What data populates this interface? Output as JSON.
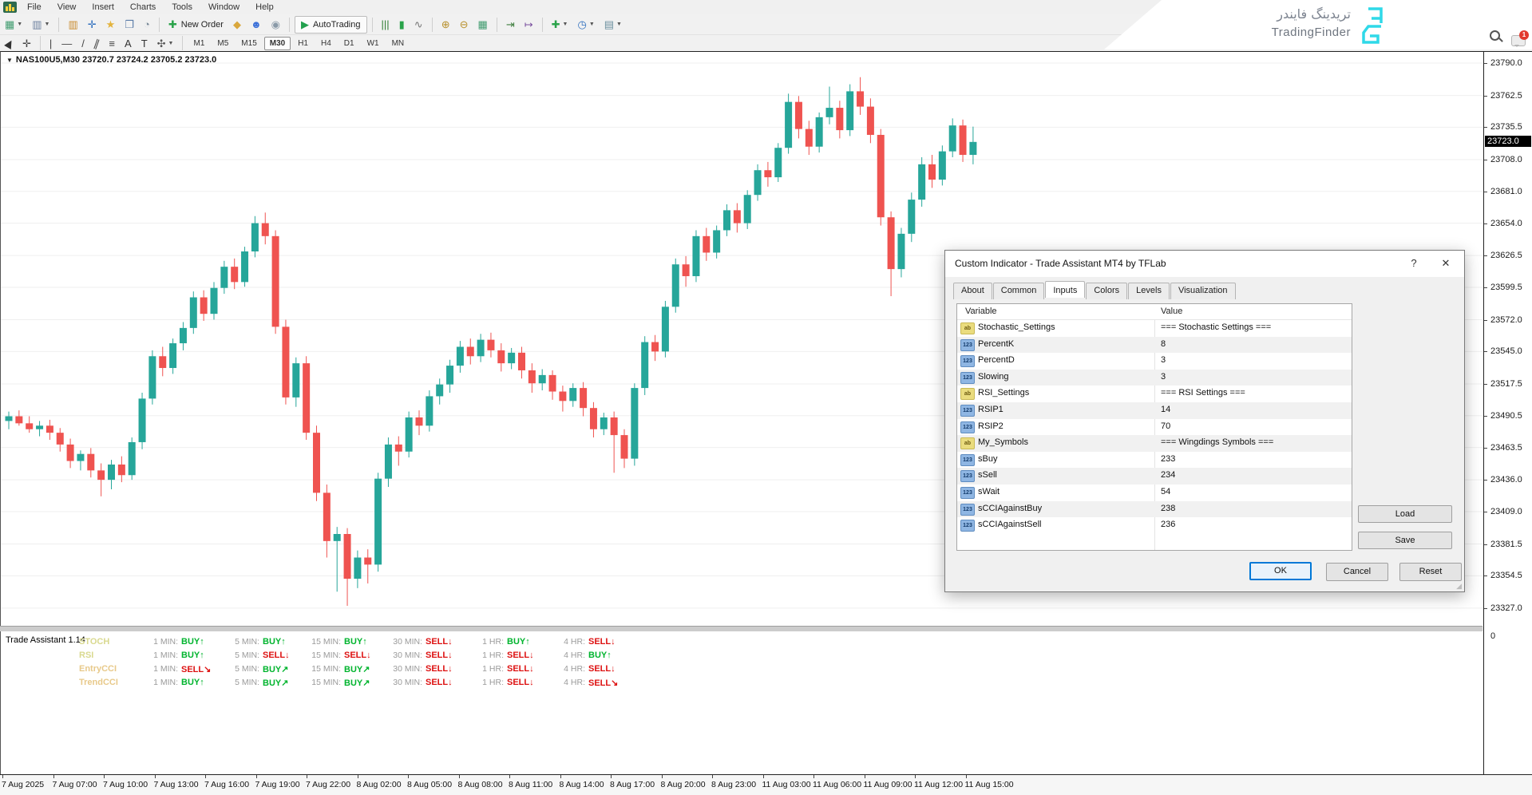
{
  "window": {
    "menus": [
      "File",
      "View",
      "Insert",
      "Charts",
      "Tools",
      "Window",
      "Help"
    ],
    "controls": {
      "minimize": "–",
      "restore": "▢",
      "close": "✕"
    }
  },
  "watermark": {
    "brand_fa": "تریدینگ فایندر",
    "brand_en": "TradingFinder",
    "notification_count": "1",
    "logo_color": "#2fd9e8"
  },
  "toolbar_main": {
    "items": [
      {
        "name": "new-chart",
        "glyph": "▦",
        "color": "#3f9b6e",
        "caret": true
      },
      {
        "name": "profiles",
        "glyph": "▥",
        "color": "#6b7f9e",
        "caret": true
      },
      {
        "sep": true
      },
      {
        "name": "market-watch",
        "glyph": "▥",
        "color": "#c98a2d"
      },
      {
        "name": "data-window",
        "glyph": "✛",
        "color": "#2f6fbe"
      },
      {
        "name": "navigator",
        "glyph": "★",
        "color": "#e3b33c"
      },
      {
        "name": "terminal",
        "glyph": "❒",
        "color": "#5a7ca8"
      },
      {
        "name": "strategy-tester",
        "glyph": "◔",
        "color": "#7a8a99"
      },
      {
        "sep": true
      },
      {
        "name": "new-order",
        "glyph": "✚",
        "color": "#2aa34a",
        "label": "New Order"
      },
      {
        "name": "metaeditor",
        "glyph": "◆",
        "color": "#d9a73c"
      },
      {
        "name": "experts",
        "glyph": "☻",
        "color": "#3a6fd8"
      },
      {
        "name": "optimizer",
        "glyph": "◉",
        "color": "#8a9aa8"
      },
      {
        "sep": true
      },
      {
        "name": "autotrading",
        "glyph": "▶",
        "color": "#23a04e",
        "label": "AutoTrading",
        "boxed": true
      },
      {
        "sep": true
      },
      {
        "name": "chart-bars",
        "glyph": "|||",
        "color": "#2e7d32"
      },
      {
        "name": "chart-candles",
        "glyph": "▮",
        "color": "#2aa34a"
      },
      {
        "name": "chart-line",
        "glyph": "∿",
        "color": "#777777"
      },
      {
        "sep": true
      },
      {
        "name": "zoom-in",
        "glyph": "⊕",
        "color": "#b8902c"
      },
      {
        "name": "zoom-out",
        "glyph": "⊖",
        "color": "#b8902c"
      },
      {
        "name": "tile-windows",
        "glyph": "▦",
        "color": "#3f9b6e"
      },
      {
        "sep": true
      },
      {
        "name": "auto-scroll",
        "glyph": "⇥",
        "color": "#3f7f3f"
      },
      {
        "name": "chart-shift",
        "glyph": "↦",
        "color": "#7a4f9e"
      },
      {
        "sep": true
      },
      {
        "name": "indicators",
        "glyph": "✚",
        "color": "#2aa34a",
        "caret": true
      },
      {
        "name": "periods",
        "glyph": "◷",
        "color": "#2f6fbe",
        "caret": true
      },
      {
        "name": "templates",
        "glyph": "▤",
        "color": "#6b8f9e",
        "caret": true
      }
    ]
  },
  "toolbar_drawing": {
    "items": [
      {
        "name": "cursor",
        "glyph": "▶",
        "color": "#333333",
        "rot": -60
      },
      {
        "name": "crosshair",
        "glyph": "✛",
        "color": "#444444"
      },
      {
        "sep": true
      },
      {
        "name": "vertical-line",
        "glyph": "|",
        "color": "#444444"
      },
      {
        "name": "horizontal-line",
        "glyph": "—",
        "color": "#444444"
      },
      {
        "name": "trendline",
        "glyph": "/",
        "color": "#444444"
      },
      {
        "name": "channel",
        "glyph": "∥",
        "color": "#444444",
        "rot": 20
      },
      {
        "name": "fibonacci",
        "glyph": "≡",
        "color": "#444444"
      },
      {
        "name": "text",
        "glyph": "A",
        "color": "#333333"
      },
      {
        "name": "text-label",
        "glyph": "T",
        "color": "#333333"
      },
      {
        "name": "arrows",
        "glyph": "✣",
        "color": "#555555",
        "caret": true
      },
      {
        "sep": true
      }
    ]
  },
  "timeframes": {
    "items": [
      "M1",
      "M5",
      "M15",
      "M30",
      "H1",
      "H4",
      "D1",
      "W1",
      "MN"
    ],
    "active": "M30"
  },
  "chart": {
    "symbol_line": "NAS100U5,M30  23720.7 23724.2 23705.2 23723.0",
    "current_price": "23723.0",
    "price_axis": [
      "23790.0",
      "23762.5",
      "23735.5",
      "23708.0",
      "23681.0",
      "23654.0",
      "23626.5",
      "23599.5",
      "23572.0",
      "23545.0",
      "23517.5",
      "23490.5",
      "23463.5",
      "23436.0",
      "23409.0",
      "23381.5",
      "23354.5",
      "23327.0"
    ],
    "sub_axis_zero": "0",
    "time_labels": [
      "7 Aug 2025",
      "7 Aug 07:00",
      "7 Aug 10:00",
      "7 Aug 13:00",
      "7 Aug 16:00",
      "7 Aug 19:00",
      "7 Aug 22:00",
      "8 Aug 02:00",
      "8 Aug 05:00",
      "8 Aug 08:00",
      "8 Aug 11:00",
      "8 Aug 14:00",
      "8 Aug 17:00",
      "8 Aug 20:00",
      "8 Aug 23:00",
      "11 Aug 03:00",
      "11 Aug 06:00",
      "11 Aug 09:00",
      "11 Aug 12:00",
      "11 Aug 15:00"
    ]
  },
  "chart_data": {
    "type": "candlestick",
    "symbol": "NAS100U5",
    "timeframe": "M30",
    "bull_color": "#26a69a",
    "bear_color": "#ef5350",
    "ylim": [
      23320,
      23800
    ],
    "current_price": 23723.0,
    "ohlc": [
      [
        23486,
        23494,
        23479,
        23490
      ],
      [
        23490,
        23495,
        23482,
        23484
      ],
      [
        23484,
        23490,
        23476,
        23479
      ],
      [
        23479,
        23486,
        23473,
        23482
      ],
      [
        23482,
        23487,
        23470,
        23476
      ],
      [
        23476,
        23480,
        23460,
        23466
      ],
      [
        23466,
        23471,
        23446,
        23452
      ],
      [
        23452,
        23461,
        23444,
        23458
      ],
      [
        23458,
        23463,
        23438,
        23444
      ],
      [
        23444,
        23450,
        23422,
        23436
      ],
      [
        23436,
        23453,
        23428,
        23449
      ],
      [
        23449,
        23456,
        23434,
        23440
      ],
      [
        23440,
        23472,
        23436,
        23468
      ],
      [
        23468,
        23510,
        23462,
        23505
      ],
      [
        23505,
        23546,
        23500,
        23541
      ],
      [
        23541,
        23549,
        23524,
        23531
      ],
      [
        23531,
        23556,
        23526,
        23552
      ],
      [
        23552,
        23570,
        23546,
        23565
      ],
      [
        23565,
        23596,
        23560,
        23591
      ],
      [
        23591,
        23597,
        23571,
        23577
      ],
      [
        23577,
        23604,
        23572,
        23599
      ],
      [
        23599,
        23622,
        23594,
        23617
      ],
      [
        23617,
        23624,
        23598,
        23604
      ],
      [
        23604,
        23634,
        23600,
        23630
      ],
      [
        23630,
        23660,
        23625,
        23654
      ],
      [
        23654,
        23663,
        23636,
        23643
      ],
      [
        23643,
        23648,
        23560,
        23566
      ],
      [
        23566,
        23572,
        23500,
        23506
      ],
      [
        23506,
        23540,
        23498,
        23535
      ],
      [
        23535,
        23541,
        23470,
        23476
      ],
      [
        23476,
        23482,
        23418,
        23425
      ],
      [
        23425,
        23432,
        23370,
        23384
      ],
      [
        23384,
        23396,
        23341,
        23390
      ],
      [
        23390,
        23395,
        23329,
        23352
      ],
      [
        23352,
        23376,
        23344,
        23370
      ],
      [
        23370,
        23377,
        23348,
        23364
      ],
      [
        23364,
        23442,
        23358,
        23437
      ],
      [
        23437,
        23472,
        23430,
        23466
      ],
      [
        23466,
        23473,
        23448,
        23460
      ],
      [
        23460,
        23494,
        23455,
        23489
      ],
      [
        23489,
        23495,
        23474,
        23482
      ],
      [
        23482,
        23512,
        23477,
        23507
      ],
      [
        23507,
        23522,
        23500,
        23517
      ],
      [
        23517,
        23538,
        23510,
        23533
      ],
      [
        23533,
        23554,
        23527,
        23549
      ],
      [
        23549,
        23556,
        23534,
        23541
      ],
      [
        23541,
        23560,
        23536,
        23555
      ],
      [
        23555,
        23561,
        23540,
        23546
      ],
      [
        23546,
        23552,
        23528,
        23535
      ],
      [
        23535,
        23548,
        23530,
        23544
      ],
      [
        23544,
        23549,
        23522,
        23529
      ],
      [
        23529,
        23535,
        23510,
        23518
      ],
      [
        23518,
        23530,
        23512,
        23525
      ],
      [
        23525,
        23529,
        23504,
        23511
      ],
      [
        23511,
        23516,
        23494,
        23503
      ],
      [
        23503,
        23518,
        23498,
        23514
      ],
      [
        23514,
        23519,
        23490,
        23497
      ],
      [
        23497,
        23502,
        23472,
        23479
      ],
      [
        23479,
        23493,
        23474,
        23489
      ],
      [
        23489,
        23494,
        23442,
        23474
      ],
      [
        23474,
        23479,
        23446,
        23454
      ],
      [
        23454,
        23518,
        23448,
        23514
      ],
      [
        23514,
        23558,
        23508,
        23553
      ],
      [
        23553,
        23559,
        23537,
        23545
      ],
      [
        23545,
        23588,
        23540,
        23583
      ],
      [
        23583,
        23624,
        23578,
        23619
      ],
      [
        23619,
        23626,
        23600,
        23609
      ],
      [
        23609,
        23648,
        23604,
        23643
      ],
      [
        23643,
        23650,
        23622,
        23629
      ],
      [
        23629,
        23652,
        23624,
        23648
      ],
      [
        23648,
        23670,
        23643,
        23665
      ],
      [
        23665,
        23671,
        23646,
        23654
      ],
      [
        23654,
        23682,
        23649,
        23678
      ],
      [
        23678,
        23704,
        23673,
        23699
      ],
      [
        23699,
        23706,
        23685,
        23693
      ],
      [
        23693,
        23722,
        23689,
        23718
      ],
      [
        23718,
        23764,
        23713,
        23757
      ],
      [
        23757,
        23762,
        23726,
        23734
      ],
      [
        23734,
        23741,
        23712,
        23719
      ],
      [
        23719,
        23748,
        23714,
        23744
      ],
      [
        23744,
        23770,
        23738,
        23752
      ],
      [
        23752,
        23758,
        23726,
        23733
      ],
      [
        23733,
        23772,
        23728,
        23766
      ],
      [
        23766,
        23778,
        23746,
        23753
      ],
      [
        23753,
        23760,
        23722,
        23729
      ],
      [
        23729,
        23734,
        23652,
        23659
      ],
      [
        23659,
        23664,
        23592,
        23615
      ],
      [
        23615,
        23650,
        23608,
        23645
      ],
      [
        23645,
        23680,
        23638,
        23674
      ],
      [
        23674,
        23710,
        23668,
        23704
      ],
      [
        23704,
        23712,
        23684,
        23691
      ],
      [
        23691,
        23720,
        23686,
        23715
      ],
      [
        23715,
        23743,
        23710,
        23737
      ],
      [
        23737,
        23742,
        23706,
        23712
      ],
      [
        23712,
        23736,
        23704,
        23723
      ]
    ]
  },
  "dialog": {
    "title": "Custom Indicator - Trade Assistant MT4 by TFLab",
    "help_glyph": "?",
    "close_glyph": "✕",
    "tabs": [
      "About",
      "Common",
      "Inputs",
      "Colors",
      "Levels",
      "Visualization"
    ],
    "active_tab": "Inputs",
    "table": {
      "headers": {
        "variable": "Variable",
        "value": "Value"
      },
      "rows": [
        {
          "type": "ab",
          "variable": "Stochastic_Settings",
          "value": "=== Stochastic Settings ==="
        },
        {
          "type": "123",
          "variable": "PercentK",
          "value": "8"
        },
        {
          "type": "123",
          "variable": "PercentD",
          "value": "3"
        },
        {
          "type": "123",
          "variable": "Slowing",
          "value": "3"
        },
        {
          "type": "ab",
          "variable": "RSI_Settings",
          "value": "=== RSI Settings ==="
        },
        {
          "type": "123",
          "variable": "RSIP1",
          "value": "14"
        },
        {
          "type": "123",
          "variable": "RSIP2",
          "value": "70"
        },
        {
          "type": "ab",
          "variable": "My_Symbols",
          "value": "=== Wingdings Symbols ==="
        },
        {
          "type": "123",
          "variable": "sBuy",
          "value": "233"
        },
        {
          "type": "123",
          "variable": "sSell",
          "value": "234"
        },
        {
          "type": "123",
          "variable": "sWait",
          "value": "54"
        },
        {
          "type": "123",
          "variable": "sCCIAgainstBuy",
          "value": "238"
        },
        {
          "type": "123",
          "variable": "sCCIAgainstSell",
          "value": "236"
        }
      ]
    },
    "buttons": {
      "load": "Load",
      "save": "Save",
      "ok": "OK",
      "cancel": "Cancel",
      "reset": "Reset"
    }
  },
  "trade_assistant": {
    "title": "Trade Assistant 1.14",
    "buy_color": "#00b42e",
    "sell_color": "#dd1111",
    "timeframe_labels": [
      "1 MIN:",
      "5 MIN:",
      "15 MIN:",
      "30 MIN:",
      "1 HR:",
      "4 HR:"
    ],
    "rows": [
      {
        "label": "STOCH",
        "color": "#d9d98f",
        "signals": [
          {
            "side": "BUY",
            "dir": "up"
          },
          {
            "side": "BUY",
            "dir": "up"
          },
          {
            "side": "BUY",
            "dir": "up"
          },
          {
            "side": "SELL",
            "dir": "down"
          },
          {
            "side": "BUY",
            "dir": "up"
          },
          {
            "side": "SELL",
            "dir": "down"
          }
        ]
      },
      {
        "label": "RSI",
        "color": "#d9d98f",
        "signals": [
          {
            "side": "BUY",
            "dir": "up"
          },
          {
            "side": "SELL",
            "dir": "down"
          },
          {
            "side": "SELL",
            "dir": "down"
          },
          {
            "side": "SELL",
            "dir": "down"
          },
          {
            "side": "SELL",
            "dir": "down"
          },
          {
            "side": "BUY",
            "dir": "up"
          }
        ]
      },
      {
        "label": "EntryCCI",
        "color": "#e8c98a",
        "signals": [
          {
            "side": "SELL",
            "dir": "se"
          },
          {
            "side": "BUY",
            "dir": "ne"
          },
          {
            "side": "BUY",
            "dir": "ne"
          },
          {
            "side": "SELL",
            "dir": "down"
          },
          {
            "side": "SELL",
            "dir": "down"
          },
          {
            "side": "SELL",
            "dir": "down"
          }
        ]
      },
      {
        "label": "TrendCCI",
        "color": "#e8c98a",
        "signals": [
          {
            "side": "BUY",
            "dir": "up"
          },
          {
            "side": "BUY",
            "dir": "ne"
          },
          {
            "side": "BUY",
            "dir": "ne"
          },
          {
            "side": "SELL",
            "dir": "down"
          },
          {
            "side": "SELL",
            "dir": "down"
          },
          {
            "side": "SELL",
            "dir": "se"
          }
        ]
      }
    ]
  }
}
